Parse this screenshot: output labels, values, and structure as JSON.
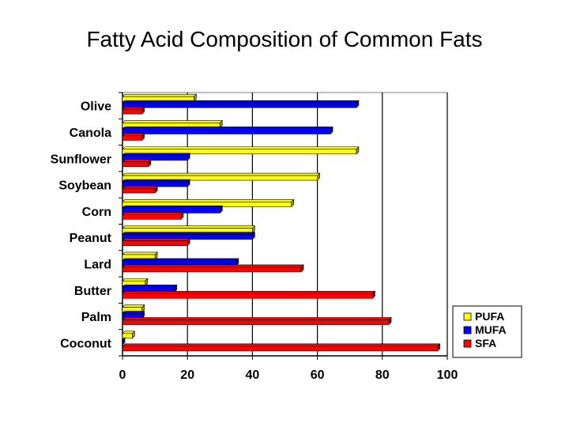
{
  "chart_data": {
    "type": "bar",
    "orientation": "horizontal",
    "title": "Fatty Acid Composition of Common Fats",
    "xlabel": "",
    "ylabel": "",
    "xlim": [
      0,
      100
    ],
    "x_ticks": [
      0,
      20,
      40,
      60,
      80,
      100
    ],
    "grid": true,
    "legend_position": "bottom-right",
    "categories": [
      "Olive",
      "Canola",
      "Sunflower",
      "Soybean",
      "Corn",
      "Peanut",
      "Lard",
      "Butter",
      "Palm",
      "Coconut"
    ],
    "series": [
      {
        "name": "PUFA",
        "color": "#ffff00",
        "values": [
          22,
          30,
          72,
          60,
          52,
          40,
          10,
          7,
          6,
          3
        ]
      },
      {
        "name": "MUFA",
        "color": "#0000ff",
        "values": [
          72,
          64,
          20,
          20,
          30,
          40,
          35,
          16,
          6,
          0
        ]
      },
      {
        "name": "SFA",
        "color": "#ff0000",
        "values": [
          6,
          6,
          8,
          10,
          18,
          20,
          55,
          77,
          82,
          97
        ]
      }
    ]
  }
}
